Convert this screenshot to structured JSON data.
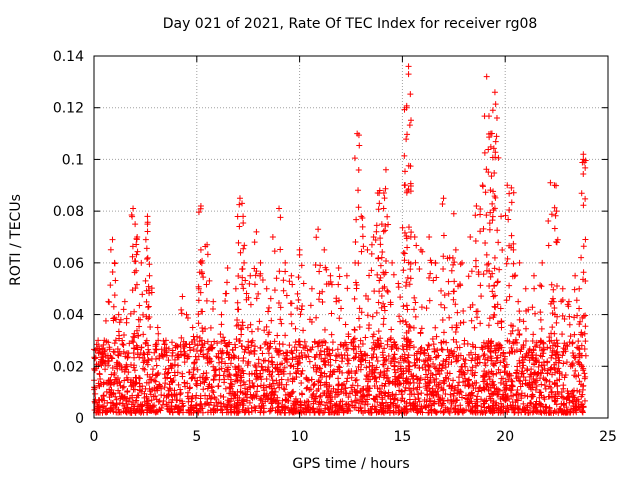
{
  "chart_data": {
    "type": "scatter",
    "title": "Day 021 of 2021, Rate Of TEC Index for receiver rg08",
    "xlabel": "GPS time / hours",
    "ylabel": "ROTI / TECUs",
    "xlim": [
      0,
      25
    ],
    "ylim": [
      0,
      0.14
    ],
    "xticks": [
      0,
      5,
      10,
      15,
      20,
      25
    ],
    "yticks": [
      0,
      0.02,
      0.04,
      0.06,
      0.08,
      0.1,
      0.12,
      0.14
    ],
    "ytick_labels": [
      "0",
      "0.02",
      "0.04",
      "0.06",
      "0.08",
      "0.1",
      "0.12",
      "0.14"
    ],
    "xtick_labels": [
      "0",
      "5",
      "10",
      "15",
      "20",
      "25"
    ],
    "grid": true,
    "marker": "+",
    "color": "#ff0000",
    "series": [
      {
        "name": "ROTI",
        "x": [
          0.2,
          0.4,
          0.7,
          0.9,
          1.2,
          1.5,
          1.9,
          2.0,
          2.3,
          2.6,
          2.7,
          3.1,
          3.5,
          4.0,
          4.3,
          4.5,
          4.8,
          5.1,
          5.2,
          5.5,
          5.8,
          6.2,
          6.5,
          6.9,
          7.1,
          7.3,
          7.6,
          7.9,
          8.1,
          8.4,
          8.7,
          9.0,
          9.3,
          9.6,
          9.9,
          10.2,
          10.6,
          10.9,
          11.2,
          11.5,
          11.9,
          12.3,
          12.7,
          13.0,
          13.3,
          13.6,
          13.8,
          14.0,
          14.2,
          14.5,
          14.8,
          15.1,
          15.3,
          15.6,
          15.9,
          16.3,
          16.6,
          17.0,
          17.3,
          17.6,
          17.9,
          18.3,
          18.6,
          18.9,
          19.1,
          19.3,
          19.5,
          19.8,
          20.1,
          20.4,
          20.7,
          21.0,
          21.4,
          21.8,
          22.2,
          22.5,
          22.8,
          23.1,
          23.4,
          23.6,
          23.8,
          0.5,
          1.0,
          2.1,
          2.6,
          5.2,
          7.2,
          10.0,
          12.8,
          13.9,
          14.1,
          15.2,
          15.3,
          17.5,
          19.4,
          19.6,
          20.3,
          22.4,
          23.8
        ],
        "y": [
          0.03,
          0.025,
          0.045,
          0.069,
          0.04,
          0.045,
          0.081,
          0.075,
          0.06,
          0.078,
          0.055,
          0.035,
          0.03,
          0.028,
          0.047,
          0.04,
          0.035,
          0.05,
          0.082,
          0.067,
          0.045,
          0.04,
          0.058,
          0.05,
          0.085,
          0.06,
          0.055,
          0.072,
          0.06,
          0.05,
          0.07,
          0.081,
          0.06,
          0.055,
          0.048,
          0.052,
          0.05,
          0.073,
          0.065,
          0.055,
          0.058,
          0.055,
          0.06,
          0.078,
          0.065,
          0.07,
          0.087,
          0.075,
          0.096,
          0.06,
          0.052,
          0.09,
          0.136,
          0.07,
          0.065,
          0.07,
          0.06,
          0.085,
          0.062,
          0.065,
          0.06,
          0.07,
          0.082,
          0.09,
          0.132,
          0.11,
          0.126,
          0.078,
          0.09,
          0.065,
          0.06,
          0.05,
          0.055,
          0.06,
          0.091,
          0.08,
          0.05,
          0.045,
          0.055,
          0.05,
          0.102,
          0.03,
          0.06,
          0.07,
          0.075,
          0.065,
          0.083,
          0.065,
          0.11,
          0.088,
          0.087,
          0.12,
          0.133,
          0.079,
          0.119,
          0.116,
          0.089,
          0.09,
          0.1
        ]
      }
    ],
    "band": {
      "description": "dense noise floor",
      "y_min": 0.002,
      "y_max": 0.03
    }
  }
}
